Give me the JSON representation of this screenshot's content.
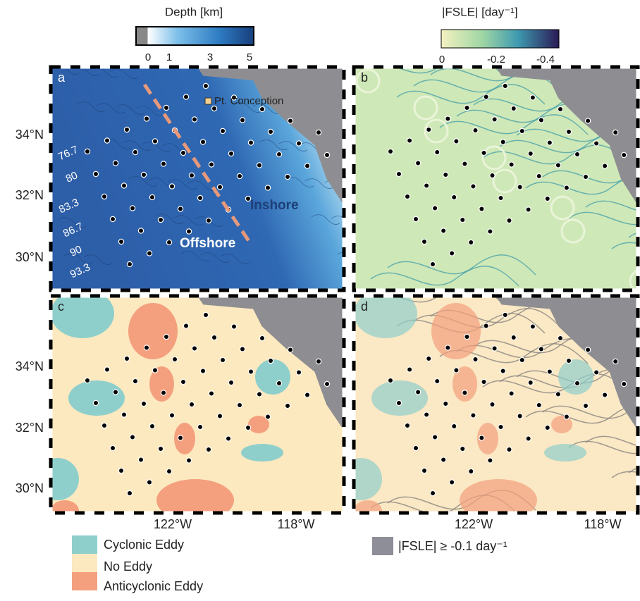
{
  "colorbars": [
    {
      "title": "Depth [km]",
      "ticks": [
        "0",
        "1",
        "3",
        "5"
      ]
    },
    {
      "title": "|FSLE|   [day⁻¹]",
      "ticks": [
        "0",
        "-0.2",
        "-0.4"
      ]
    }
  ],
  "panels": [
    "a",
    "b",
    "c",
    "d"
  ],
  "latitudes": [
    "34°N",
    "32°N",
    "30°N"
  ],
  "longitudes": [
    "122°W",
    "118°W"
  ],
  "annotations": {
    "point": "Pt. Conception",
    "inshore": "Inshore",
    "offshore": "Offshore"
  },
  "survey_lines": [
    "76.7",
    "80",
    "83.3",
    "86.7",
    "90",
    "93.3"
  ],
  "eddy_legend": [
    "Cyclonic Eddy",
    "No Eddy",
    "Anticyclonic Eddy"
  ],
  "fsle_legend": "|FSLE| ≥ -0.1 day⁻¹"
}
